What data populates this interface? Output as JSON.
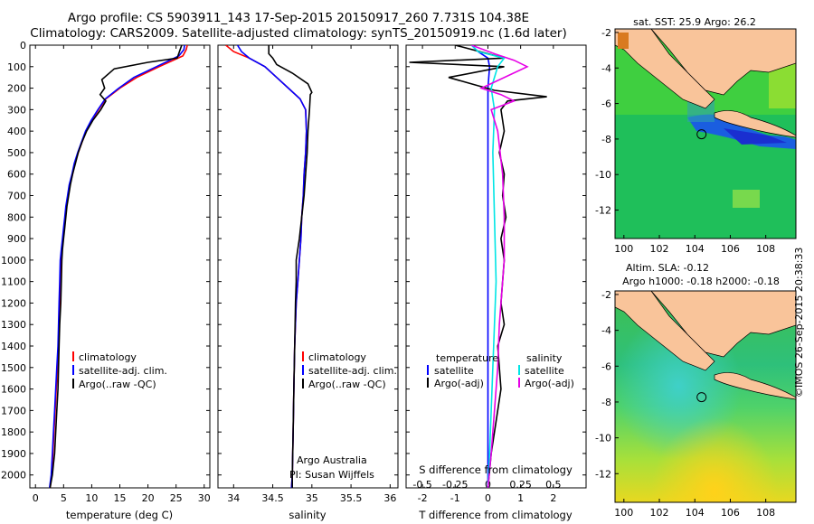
{
  "header": {
    "line1": "Argo profile: CS 5903911_143 17-Sep-2015 20150917_260 7.731S 104.38E",
    "line2": "Climatology: CARS2009. Satellite-adjusted climatology: synTS_20150919.nc (1.6d later)"
  },
  "credit": "©IMOS 26-Sep-2015 20:38:33",
  "colors": {
    "climatology": "#ff0000",
    "satellite": "#0000ff",
    "argo": "#000000",
    "sat_salinity": "#00e5e5",
    "argo_adj_salinity": "#e600e6",
    "land": "#f9c49a"
  },
  "chart_data": [
    {
      "type": "line",
      "id": "temperature",
      "xlabel": "temperature (deg C)",
      "xlim": [
        -1,
        31
      ],
      "ylim": [
        2060,
        0
      ],
      "xticks": [
        0,
        5,
        10,
        15,
        20,
        25,
        30
      ],
      "yticks": [
        0,
        100,
        200,
        300,
        400,
        500,
        600,
        700,
        800,
        900,
        1000,
        1100,
        1200,
        1300,
        1400,
        1500,
        1600,
        1700,
        1800,
        1900,
        2000
      ],
      "legend": [
        "climatology",
        "satellite-adj. clim.",
        "Argo(..raw -QC)"
      ],
      "series": [
        {
          "name": "climatology",
          "color": "#ff0000",
          "x": [
            27,
            26.8,
            26.2,
            22,
            18,
            15,
            12.5,
            11.2,
            10,
            9,
            8.3,
            7.6,
            7,
            6.6,
            6.1,
            5.8,
            5.5,
            5.3,
            5.1,
            4.9,
            4.7,
            4.5,
            4.4,
            4.3,
            4.2,
            4.1,
            3.9,
            3.7,
            3.5,
            3.3,
            3.1,
            2.9,
            2.6
          ],
          "y": [
            0,
            20,
            50,
            100,
            150,
            200,
            250,
            300,
            350,
            400,
            450,
            500,
            550,
            600,
            650,
            700,
            750,
            800,
            850,
            900,
            950,
            1000,
            1100,
            1200,
            1300,
            1400,
            1500,
            1600,
            1700,
            1800,
            1900,
            2000,
            2060
          ]
        },
        {
          "name": "satellite-adj. clim.",
          "color": "#0000ff",
          "x": [
            26.5,
            26.4,
            25.5,
            21.5,
            17.5,
            14.8,
            12.4,
            11.1,
            9.9,
            8.9,
            8.2,
            7.5,
            6.9,
            6.5,
            6.0,
            5.7,
            5.4,
            5.2,
            5.0,
            4.8,
            4.6,
            4.4,
            4.3,
            4.2,
            4.1,
            4.0,
            3.8,
            3.6,
            3.4,
            3.2,
            3.0,
            2.8,
            2.5
          ],
          "y": [
            0,
            20,
            50,
            100,
            150,
            200,
            250,
            300,
            350,
            400,
            450,
            500,
            550,
            600,
            650,
            700,
            750,
            800,
            850,
            900,
            950,
            1000,
            1100,
            1200,
            1300,
            1400,
            1500,
            1600,
            1700,
            1800,
            1900,
            2000,
            2060
          ]
        },
        {
          "name": "Argo(..raw -QC)",
          "color": "#000000",
          "x": [
            26,
            25.6,
            25.2,
            20,
            14,
            11.8,
            12.3,
            11.5,
            12.5,
            11.6,
            10.2,
            9.1,
            8.3,
            7.6,
            7.1,
            6.6,
            6.2,
            5.9,
            5.6,
            5.4,
            5.2,
            5.0,
            4.8,
            4.7,
            4.6,
            4.5,
            4.3,
            4.2,
            4.1,
            4.0,
            3.8,
            3.6,
            3.4,
            3.2,
            3.0,
            2.8,
            2.6
          ],
          "y": [
            0,
            30,
            60,
            80,
            110,
            160,
            200,
            230,
            260,
            300,
            350,
            400,
            450,
            500,
            550,
            600,
            650,
            700,
            750,
            800,
            850,
            900,
            950,
            1000,
            1100,
            1200,
            1300,
            1400,
            1500,
            1600,
            1700,
            1800,
            1900,
            1950,
            2000,
            2030,
            2060
          ]
        }
      ]
    },
    {
      "type": "line",
      "id": "salinity",
      "xlabel": "salinity",
      "xlim": [
        33.8,
        36.1
      ],
      "ylim": [
        2060,
        0
      ],
      "xticks": [
        "34",
        "34.5",
        "35",
        "35.5",
        "36"
      ],
      "xtick_values": [
        34,
        34.5,
        35,
        35.5,
        36
      ],
      "legend": [
        "climatology",
        "satellite-adj. clim.",
        "Argo(..raw -QC)"
      ],
      "annotation": [
        "Argo Australia",
        "PI: Susan Wijffels"
      ],
      "series": [
        {
          "name": "climatology",
          "color": "#ff0000",
          "x": [
            33.9,
            34.0,
            34.2,
            34.4,
            34.55,
            34.7,
            34.85,
            34.92,
            34.93,
            34.92,
            34.9,
            34.89,
            34.87,
            34.86,
            34.84,
            34.82,
            34.8,
            34.78,
            34.77,
            34.76,
            34.75,
            34.74
          ],
          "y": [
            0,
            30,
            60,
            100,
            150,
            200,
            250,
            300,
            400,
            500,
            600,
            700,
            800,
            900,
            1000,
            1100,
            1200,
            1400,
            1600,
            1800,
            2000,
            2060
          ]
        },
        {
          "name": "satellite-adj. clim.",
          "color": "#0000ff",
          "x": [
            34.05,
            34.1,
            34.2,
            34.4,
            34.55,
            34.7,
            34.85,
            34.92,
            34.93,
            34.92,
            34.9,
            34.89,
            34.87,
            34.86,
            34.84,
            34.82,
            34.8,
            34.78,
            34.77,
            34.76,
            34.75,
            34.74
          ],
          "y": [
            0,
            30,
            60,
            100,
            150,
            200,
            250,
            300,
            400,
            500,
            600,
            700,
            800,
            900,
            1000,
            1100,
            1200,
            1400,
            1600,
            1800,
            2000,
            2060
          ]
        },
        {
          "name": "Argo(..raw -QC)",
          "color": "#000000",
          "x": [
            34.45,
            34.45,
            34.5,
            34.55,
            34.6,
            34.75,
            34.95,
            35.0,
            34.98,
            34.97,
            34.95,
            34.94,
            34.92,
            34.9,
            34.87,
            34.84,
            34.8,
            34.8,
            34.79,
            34.78,
            34.77,
            34.76,
            34.75,
            34.75
          ],
          "y": [
            0,
            40,
            60,
            90,
            100,
            130,
            180,
            220,
            230,
            300,
            400,
            500,
            600,
            700,
            800,
            900,
            1000,
            1100,
            1200,
            1400,
            1600,
            1800,
            2000,
            2060
          ]
        }
      ]
    },
    {
      "type": "line",
      "id": "difference",
      "xlabel": "T difference from climatology",
      "xlabel2": "S difference from climatology",
      "xlim": [
        -2.5,
        3.0
      ],
      "ylim": [
        2060,
        0
      ],
      "xticks": [
        "-2",
        "-1",
        "0",
        "1",
        "2"
      ],
      "xtick_values": [
        -2,
        -1,
        0,
        1,
        2
      ],
      "sticks": [
        "-0.5",
        "-0.25",
        "0",
        "0.25",
        "0.5"
      ],
      "stick_values": [
        -2,
        -1,
        0,
        1,
        2
      ],
      "legend_temperature": [
        "temperature",
        "satellite",
        "Argo(-adj)"
      ],
      "legend_salinity": [
        "salinity",
        "satellite",
        "Argo(-adj)"
      ],
      "series": [
        {
          "name": "temperature satellite",
          "color": "#0000ff",
          "x": [
            -0.5,
            -0.3,
            0,
            0.05,
            0,
            0,
            0,
            0,
            0,
            0,
            0,
            0,
            0
          ],
          "y": [
            0,
            30,
            60,
            100,
            200,
            300,
            500,
            800,
            1100,
            1400,
            1700,
            1900,
            2060
          ]
        },
        {
          "name": "temperature Argo(-adj)",
          "color": "#000000",
          "x": [
            -1,
            0,
            0.5,
            -2.4,
            0.5,
            -1.2,
            0.2,
            1.8,
            0.6,
            0.4,
            0.5,
            0.35,
            0.5,
            0.45,
            0.55,
            0.4,
            0.5,
            0.45,
            0.4,
            0.5,
            0.3,
            0.35,
            0.4,
            0.3,
            0.2,
            0.1,
            0
          ],
          "y": [
            0,
            40,
            60,
            80,
            100,
            150,
            210,
            240,
            260,
            300,
            400,
            500,
            600,
            700,
            800,
            900,
            1000,
            1100,
            1200,
            1300,
            1400,
            1500,
            1600,
            1700,
            1800,
            1900,
            2060
          ]
        },
        {
          "name": "salinity satellite",
          "color": "#00e5e5",
          "x": [
            -0.5,
            -0.3,
            0.5,
            0.3,
            0.1,
            0.2,
            0.15,
            0.2,
            0.25,
            0.2,
            0.15,
            0.1,
            0.05,
            0
          ],
          "y": [
            0,
            30,
            60,
            100,
            200,
            300,
            500,
            800,
            1100,
            1300,
            1500,
            1700,
            1900,
            2060
          ]
        },
        {
          "name": "salinity Argo(-adj)",
          "color": "#e600e6",
          "x": [
            -0.5,
            0.2,
            0.8,
            1.2,
            -0.2,
            0.4,
            0.8,
            0.1,
            0.3,
            0.45,
            0.5,
            0.5,
            0.45,
            0.4,
            0.35,
            0.3,
            0.2,
            0.1,
            0
          ],
          "y": [
            0,
            40,
            70,
            100,
            200,
            230,
            260,
            300,
            400,
            600,
            800,
            1000,
            1100,
            1200,
            1300,
            1500,
            1700,
            1900,
            2060
          ]
        }
      ]
    },
    {
      "type": "heatmap",
      "id": "sst_map",
      "title": "sat. SST: 25.9  Argo: 26.2",
      "xlim": [
        99.5,
        109.7
      ],
      "ylim": [
        -13.6,
        -1.8
      ],
      "xticks": [
        100,
        102,
        104,
        106,
        108
      ],
      "yticks": [
        -2,
        -4,
        -6,
        -8,
        -10,
        -12
      ],
      "marker": {
        "lon": 104.38,
        "lat": -7.73
      }
    },
    {
      "type": "heatmap",
      "id": "sla_map",
      "title": "Altim. SLA: -0.12",
      "subtitle": "Argo h1000: -0.18 h2000: -0.18",
      "xlim": [
        99.5,
        109.7
      ],
      "ylim": [
        -13.6,
        -1.8
      ],
      "xticks": [
        100,
        102,
        104,
        106,
        108
      ],
      "yticks": [
        -2,
        -4,
        -6,
        -8,
        -10,
        -12
      ],
      "marker": {
        "lon": 104.38,
        "lat": -7.73
      }
    }
  ]
}
